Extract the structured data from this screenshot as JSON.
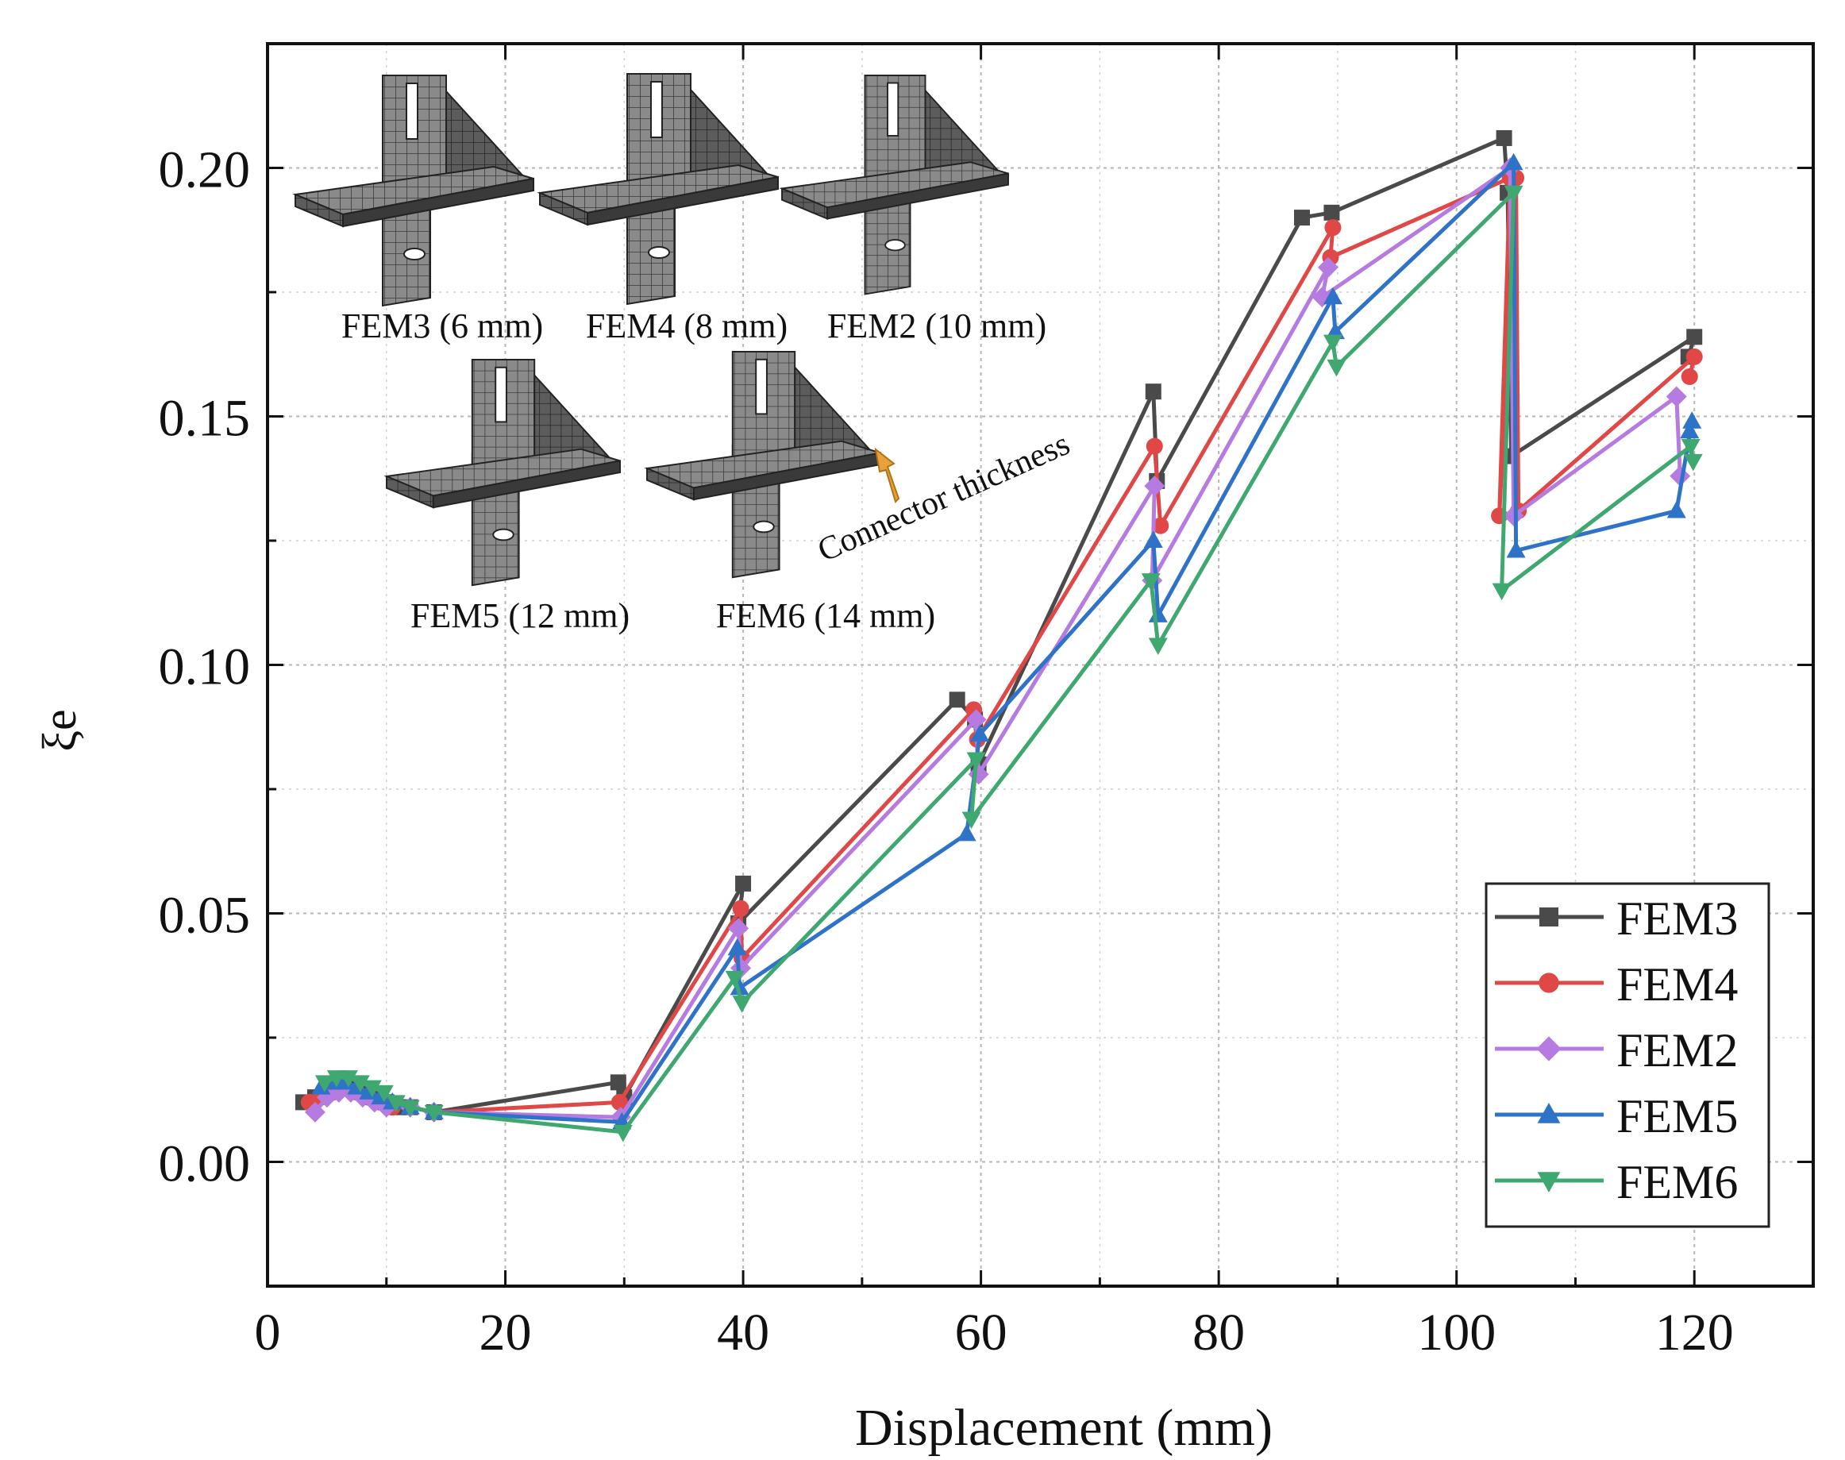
{
  "chart_data": {
    "type": "line",
    "title": "",
    "xlabel": "Displacement (mm)",
    "ylabel": "ξe",
    "xlim": [
      0,
      130
    ],
    "ylim": [
      -0.025,
      0.225
    ],
    "x_ticks": [
      0,
      20,
      40,
      60,
      80,
      100,
      120
    ],
    "x_tick_labels": [
      "0",
      "20",
      "40",
      "60",
      "80",
      "100",
      "120"
    ],
    "y_ticks": [
      0.0,
      0.05,
      0.1,
      0.15,
      0.2
    ],
    "y_tick_labels": [
      "0.00",
      "0.05",
      "0.10",
      "0.15",
      "0.20"
    ],
    "grid": true,
    "legend_position": "bottom-right",
    "series": [
      {
        "name": "FEM3",
        "color": "#4a4a4a",
        "marker": "square",
        "points": [
          [
            3,
            0.012
          ],
          [
            4,
            0.013
          ],
          [
            5,
            0.014
          ],
          [
            6,
            0.015
          ],
          [
            7,
            0.015
          ],
          [
            8,
            0.014
          ],
          [
            9,
            0.013
          ],
          [
            10,
            0.012
          ],
          [
            11,
            0.011
          ],
          [
            12,
            0.011
          ],
          [
            14,
            0.01
          ],
          [
            29.5,
            0.016
          ],
          [
            30,
            0.013
          ],
          [
            40,
            0.056
          ],
          [
            39.6,
            0.048
          ],
          [
            58,
            0.093
          ],
          [
            59.5,
            0.089
          ],
          [
            59.8,
            0.08
          ],
          [
            74.5,
            0.155
          ],
          [
            74.8,
            0.137
          ],
          [
            87,
            0.19
          ],
          [
            89.5,
            0.191
          ],
          [
            104,
            0.206
          ],
          [
            104.3,
            0.195
          ],
          [
            104.6,
            0.142
          ],
          [
            120,
            0.166
          ],
          [
            119.5,
            0.162
          ]
        ]
      },
      {
        "name": "FEM4",
        "color": "#e04848",
        "marker": "circle",
        "points": [
          [
            3.5,
            0.012
          ],
          [
            4.5,
            0.013
          ],
          [
            5.5,
            0.014
          ],
          [
            6.5,
            0.015
          ],
          [
            7.5,
            0.014
          ],
          [
            8.5,
            0.013
          ],
          [
            9.5,
            0.012
          ],
          [
            10.5,
            0.011
          ],
          [
            12,
            0.011
          ],
          [
            14,
            0.01
          ],
          [
            29.6,
            0.012
          ],
          [
            39.8,
            0.051
          ],
          [
            39.9,
            0.041
          ],
          [
            59.4,
            0.091
          ],
          [
            59.7,
            0.085
          ],
          [
            74.6,
            0.144
          ],
          [
            75.1,
            0.128
          ],
          [
            89.6,
            0.188
          ],
          [
            89.4,
            0.182
          ],
          [
            104.5,
            0.198
          ],
          [
            103.6,
            0.13
          ],
          [
            105,
            0.198
          ],
          [
            105.2,
            0.131
          ],
          [
            120,
            0.162
          ],
          [
            119.6,
            0.158
          ]
        ]
      },
      {
        "name": "FEM2",
        "color": "#b57be0",
        "marker": "diamond",
        "points": [
          [
            4,
            0.01
          ],
          [
            5,
            0.013
          ],
          [
            6,
            0.014
          ],
          [
            7,
            0.014
          ],
          [
            8,
            0.013
          ],
          [
            9,
            0.012
          ],
          [
            10,
            0.011
          ],
          [
            12,
            0.011
          ],
          [
            14,
            0.01
          ],
          [
            29.7,
            0.009
          ],
          [
            39.6,
            0.047
          ],
          [
            39.8,
            0.039
          ],
          [
            59.6,
            0.089
          ],
          [
            59.8,
            0.078
          ],
          [
            74.6,
            0.136
          ],
          [
            74.4,
            0.117
          ],
          [
            89.2,
            0.18
          ],
          [
            88.7,
            0.174
          ],
          [
            104.5,
            0.2
          ],
          [
            104.8,
            0.13
          ],
          [
            118.5,
            0.154
          ],
          [
            118.8,
            0.138
          ]
        ]
      },
      {
        "name": "FEM5",
        "color": "#2f73c8",
        "marker": "triangle-up",
        "points": [
          [
            4.5,
            0.015
          ],
          [
            5.5,
            0.016
          ],
          [
            6.5,
            0.016
          ],
          [
            7.5,
            0.015
          ],
          [
            8.5,
            0.014
          ],
          [
            9.5,
            0.013
          ],
          [
            10.5,
            0.012
          ],
          [
            12,
            0.011
          ],
          [
            14,
            0.01
          ],
          [
            29.8,
            0.008
          ],
          [
            39.5,
            0.043
          ],
          [
            39.7,
            0.035
          ],
          [
            58.8,
            0.066
          ],
          [
            59.9,
            0.086
          ],
          [
            74.5,
            0.125
          ],
          [
            74.9,
            0.11
          ],
          [
            89.6,
            0.174
          ],
          [
            89.8,
            0.167
          ],
          [
            104.8,
            0.201
          ],
          [
            105,
            0.123
          ],
          [
            118.5,
            0.131
          ],
          [
            119.8,
            0.149
          ],
          [
            119.6,
            0.147
          ]
        ]
      },
      {
        "name": "FEM6",
        "color": "#3ea870",
        "marker": "triangle-down",
        "points": [
          [
            4.8,
            0.016
          ],
          [
            5.8,
            0.017
          ],
          [
            6.8,
            0.017
          ],
          [
            7.8,
            0.016
          ],
          [
            8.8,
            0.015
          ],
          [
            9.8,
            0.014
          ],
          [
            10.8,
            0.012
          ],
          [
            12,
            0.011
          ],
          [
            14,
            0.01
          ],
          [
            29.9,
            0.006
          ],
          [
            39.3,
            0.037
          ],
          [
            39.9,
            0.032
          ],
          [
            59.6,
            0.081
          ],
          [
            59.2,
            0.069
          ],
          [
            74.3,
            0.117
          ],
          [
            74.9,
            0.104
          ],
          [
            89.6,
            0.165
          ],
          [
            89.9,
            0.16
          ],
          [
            104.8,
            0.195
          ],
          [
            103.8,
            0.115
          ],
          [
            119.7,
            0.144
          ],
          [
            119.9,
            0.141
          ]
        ]
      }
    ],
    "annotation_text": "Connector thickness",
    "inset_labels": [
      "FEM3 (6 mm)",
      "FEM4 (8 mm)",
      "FEM2 (10 mm)",
      "FEM5 (12 mm)",
      "FEM6 (14 mm)"
    ]
  }
}
